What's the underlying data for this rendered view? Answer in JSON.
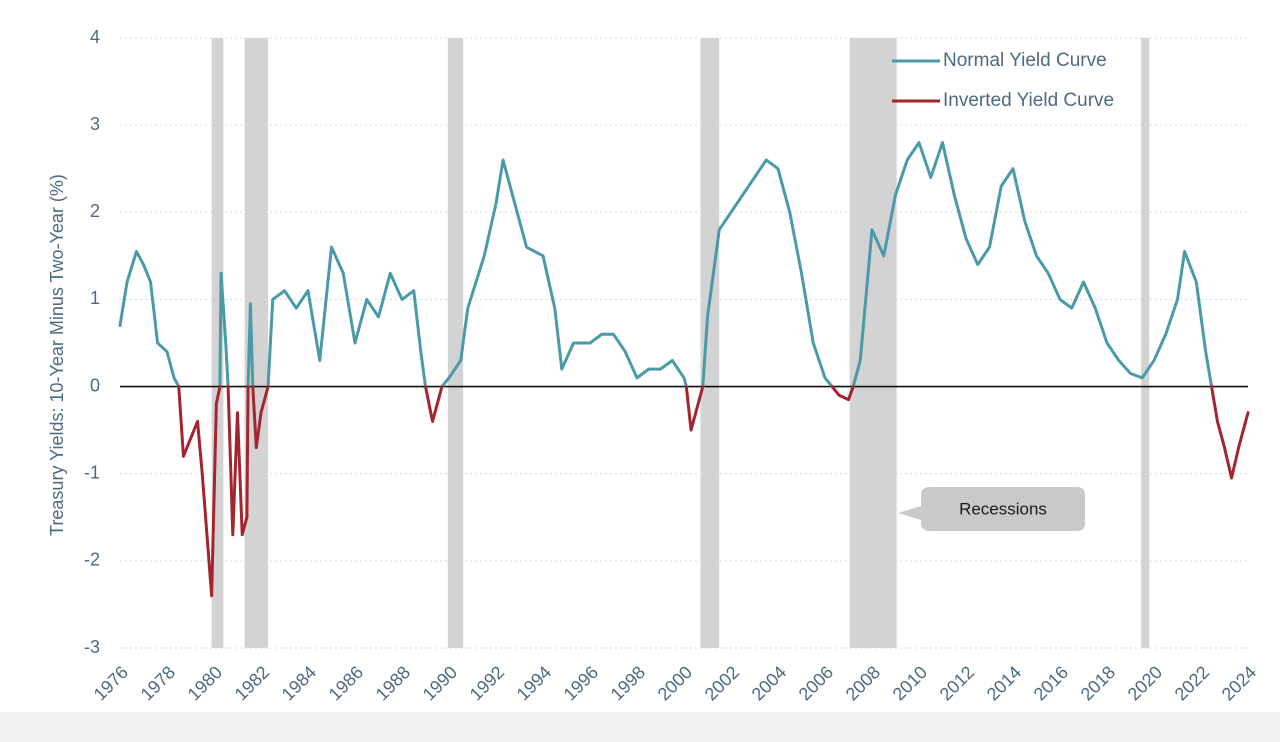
{
  "chart_data": {
    "type": "line",
    "y_label": "Treasury Yields: 10-Year Minus Two-Year (%)",
    "annotation": "Recessions",
    "legend": "upper right",
    "grid": true,
    "xlim": [
      1976,
      2024
    ],
    "xticks": [
      1976,
      1978,
      1980,
      1982,
      1984,
      1986,
      1988,
      1990,
      1992,
      1994,
      1996,
      1998,
      2000,
      2002,
      2004,
      2006,
      2008,
      2010,
      2012,
      2014,
      2016,
      2018,
      2020,
      2022,
      2024
    ],
    "ylim": [
      -3,
      4
    ],
    "yticks": [
      -3,
      -2,
      -1,
      0,
      1,
      2,
      3,
      4
    ],
    "recession_color": "#d3d3d3",
    "recessions": [
      [
        1979.9,
        1980.4
      ],
      [
        1981.3,
        1982.3
      ],
      [
        1989.95,
        1990.6
      ],
      [
        2000.7,
        2001.5
      ],
      [
        2007.05,
        2009.05
      ],
      [
        2019.45,
        2019.8
      ]
    ],
    "x": [
      1976.0,
      1976.3,
      1976.7,
      1977.0,
      1977.3,
      1977.6,
      1978.0,
      1978.3,
      1978.5,
      1978.7,
      1979.0,
      1979.3,
      1979.5,
      1979.7,
      1979.9,
      1980.1,
      1980.25,
      1980.3,
      1980.5,
      1980.6,
      1980.8,
      1981.0,
      1981.2,
      1981.4,
      1981.45,
      1981.55,
      1981.65,
      1981.8,
      1982.0,
      1982.3,
      1982.5,
      1983.0,
      1983.5,
      1984.0,
      1984.5,
      1985.0,
      1985.5,
      1986.0,
      1986.5,
      1987.0,
      1987.5,
      1988.0,
      1988.5,
      1988.8,
      1989.0,
      1989.3,
      1989.6,
      1989.7,
      1990.0,
      1990.5,
      1990.8,
      1991.5,
      1992.0,
      1992.3,
      1992.7,
      1993.3,
      1994.0,
      1994.5,
      1994.8,
      1995.3,
      1996.0,
      1996.5,
      1997.0,
      1997.5,
      1998.0,
      1998.5,
      1999.0,
      1999.5,
      2000.0,
      2000.1,
      2000.3,
      2000.6,
      2000.8,
      2001.0,
      2001.5,
      2002.0,
      2002.5,
      2003.0,
      2003.5,
      2004.0,
      2004.5,
      2005.0,
      2005.5,
      2006.0,
      2006.3,
      2006.6,
      2007.0,
      2007.2,
      2007.5,
      2008.0,
      2008.5,
      2009.0,
      2009.5,
      2010.0,
      2010.5,
      2011.0,
      2011.5,
      2012.0,
      2012.5,
      2013.0,
      2013.5,
      2014.0,
      2014.5,
      2015.0,
      2015.5,
      2016.0,
      2016.5,
      2017.0,
      2017.5,
      2018.0,
      2018.5,
      2019.0,
      2019.5,
      2020.0,
      2020.5,
      2021.0,
      2021.3,
      2021.8,
      2022.2,
      2022.45,
      2022.7,
      2023.0,
      2023.3,
      2023.6,
      2024.0
    ],
    "series": [
      {
        "name": "Normal Yield Curve",
        "color": "#4a9aa8",
        "values": [
          0.7,
          1.2,
          1.55,
          1.4,
          1.2,
          0.5,
          0.4,
          0.1,
          0,
          null,
          null,
          null,
          null,
          null,
          null,
          null,
          0,
          1.3,
          0.5,
          0,
          null,
          null,
          null,
          null,
          0,
          0.95,
          0,
          null,
          null,
          0,
          1.0,
          1.1,
          0.9,
          1.1,
          0.3,
          1.6,
          1.3,
          0.5,
          1.0,
          0.8,
          1.3,
          1.0,
          1.1,
          0.4,
          0,
          null,
          null,
          0,
          0.1,
          0.3,
          0.9,
          1.5,
          2.1,
          2.6,
          2.2,
          1.6,
          1.5,
          0.9,
          0.2,
          0.5,
          0.5,
          0.6,
          0.6,
          0.4,
          0.1,
          0.2,
          0.2,
          0.3,
          0.1,
          0,
          null,
          null,
          0,
          0.8,
          1.8,
          2.0,
          2.2,
          2.4,
          2.6,
          2.5,
          2.0,
          1.3,
          0.5,
          0.1,
          0,
          null,
          null,
          0,
          0.3,
          1.8,
          1.5,
          2.2,
          2.6,
          2.8,
          2.4,
          2.8,
          2.2,
          1.7,
          1.4,
          1.6,
          2.3,
          2.5,
          1.9,
          1.5,
          1.3,
          1.0,
          0.9,
          1.2,
          0.9,
          0.5,
          0.3,
          0.15,
          0.1,
          0.3,
          0.6,
          1.0,
          1.55,
          1.2,
          0.4,
          0,
          null,
          null,
          null,
          null,
          null
        ]
      },
      {
        "name": "Inverted Yield Curve",
        "color": "#a3262e",
        "values": [
          null,
          null,
          null,
          null,
          null,
          null,
          null,
          null,
          0,
          -0.8,
          -0.6,
          -0.4,
          -1.0,
          -1.7,
          -2.4,
          -0.2,
          0,
          null,
          null,
          0,
          -1.7,
          -0.3,
          -1.7,
          -1.5,
          0,
          null,
          0,
          -0.7,
          -0.3,
          0,
          null,
          null,
          null,
          null,
          null,
          null,
          null,
          null,
          null,
          null,
          null,
          null,
          null,
          null,
          0,
          -0.4,
          -0.1,
          0,
          null,
          null,
          null,
          null,
          null,
          null,
          null,
          null,
          null,
          null,
          null,
          null,
          null,
          null,
          null,
          null,
          null,
          null,
          null,
          null,
          null,
          0,
          -0.5,
          -0.2,
          0,
          null,
          null,
          null,
          null,
          null,
          null,
          null,
          null,
          null,
          null,
          null,
          0,
          -0.1,
          -0.15,
          0,
          null,
          null,
          null,
          null,
          null,
          null,
          null,
          null,
          null,
          null,
          null,
          null,
          null,
          null,
          null,
          null,
          null,
          null,
          null,
          null,
          null,
          null,
          null,
          null,
          null,
          null,
          null,
          null,
          null,
          null,
          null,
          0,
          -0.4,
          -0.7,
          -1.05,
          -0.7,
          -0.3
        ]
      }
    ]
  }
}
